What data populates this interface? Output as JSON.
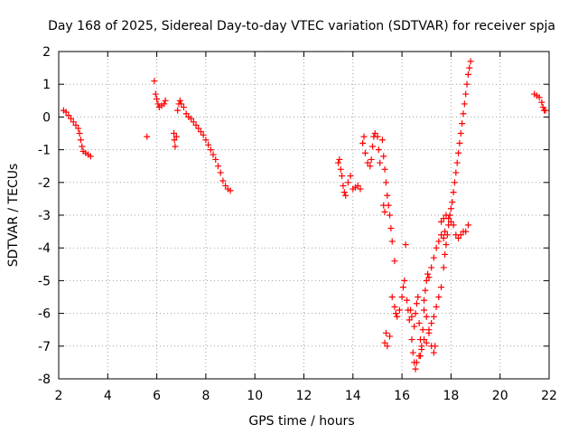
{
  "chart_data": {
    "type": "scatter",
    "title": "Day 168 of 2025, Sidereal Day-to-day VTEC variation (SDTVAR) for receiver spja",
    "xlabel": "GPS time / hours",
    "ylabel": "SDTVAR / TECUs",
    "xlim": [
      2,
      22
    ],
    "ylim": [
      -8,
      2
    ],
    "xticks": [
      2,
      4,
      6,
      8,
      10,
      12,
      14,
      16,
      18,
      20,
      22
    ],
    "yticks": [
      -8,
      -7,
      -6,
      -5,
      -4,
      -3,
      -2,
      -1,
      0,
      1,
      2
    ],
    "grid": true,
    "marker": "+",
    "color": "#ff0000",
    "series": [
      {
        "name": "SDTVAR",
        "points": [
          [
            2.2,
            0.2
          ],
          [
            2.3,
            0.15
          ],
          [
            2.4,
            0.05
          ],
          [
            2.5,
            -0.05
          ],
          [
            2.6,
            -0.15
          ],
          [
            2.7,
            -0.25
          ],
          [
            2.8,
            -0.35
          ],
          [
            2.85,
            -0.5
          ],
          [
            2.9,
            -0.7
          ],
          [
            2.95,
            -0.9
          ],
          [
            3.0,
            -1.05
          ],
          [
            3.1,
            -1.1
          ],
          [
            3.2,
            -1.15
          ],
          [
            3.3,
            -1.2
          ],
          [
            5.6,
            -0.6
          ],
          [
            5.9,
            1.1
          ],
          [
            5.95,
            0.7
          ],
          [
            6.0,
            0.55
          ],
          [
            6.05,
            0.4
          ],
          [
            6.1,
            0.3
          ],
          [
            6.2,
            0.35
          ],
          [
            6.3,
            0.4
          ],
          [
            6.35,
            0.5
          ],
          [
            6.7,
            -0.5
          ],
          [
            6.72,
            -0.7
          ],
          [
            6.75,
            -0.9
          ],
          [
            6.8,
            -0.6
          ],
          [
            6.85,
            0.2
          ],
          [
            6.9,
            0.4
          ],
          [
            6.95,
            0.5
          ],
          [
            7.0,
            0.4
          ],
          [
            7.1,
            0.3
          ],
          [
            7.2,
            0.1
          ],
          [
            7.3,
            0.0
          ],
          [
            7.4,
            -0.05
          ],
          [
            7.5,
            -0.15
          ],
          [
            7.6,
            -0.25
          ],
          [
            7.7,
            -0.35
          ],
          [
            7.8,
            -0.45
          ],
          [
            7.9,
            -0.55
          ],
          [
            8.0,
            -0.7
          ],
          [
            8.1,
            -0.85
          ],
          [
            8.2,
            -1.0
          ],
          [
            8.3,
            -1.15
          ],
          [
            8.4,
            -1.3
          ],
          [
            8.5,
            -1.5
          ],
          [
            8.6,
            -1.7
          ],
          [
            8.7,
            -1.95
          ],
          [
            8.8,
            -2.1
          ],
          [
            8.9,
            -2.2
          ],
          [
            9.0,
            -2.25
          ],
          [
            13.4,
            -1.4
          ],
          [
            13.45,
            -1.3
          ],
          [
            13.5,
            -1.6
          ],
          [
            13.55,
            -1.8
          ],
          [
            13.6,
            -2.1
          ],
          [
            13.65,
            -2.3
          ],
          [
            13.7,
            -2.4
          ],
          [
            13.8,
            -2.0
          ],
          [
            13.9,
            -1.8
          ],
          [
            14.0,
            -2.2
          ],
          [
            14.1,
            -2.15
          ],
          [
            14.2,
            -2.1
          ],
          [
            14.3,
            -2.2
          ],
          [
            14.4,
            -0.8
          ],
          [
            14.45,
            -0.6
          ],
          [
            14.5,
            -1.1
          ],
          [
            14.6,
            -1.4
          ],
          [
            14.7,
            -1.5
          ],
          [
            14.75,
            -1.3
          ],
          [
            14.8,
            -0.9
          ],
          [
            14.85,
            -0.6
          ],
          [
            14.9,
            -0.5
          ],
          [
            15.0,
            -0.6
          ],
          [
            15.05,
            -1.0
          ],
          [
            15.1,
            -1.4
          ],
          [
            15.2,
            -0.7
          ],
          [
            15.25,
            -1.2
          ],
          [
            15.3,
            -1.6
          ],
          [
            15.35,
            -2.0
          ],
          [
            15.4,
            -2.4
          ],
          [
            15.45,
            -2.7
          ],
          [
            15.5,
            -3.0
          ],
          [
            15.55,
            -3.4
          ],
          [
            15.6,
            -3.8
          ],
          [
            15.7,
            -4.4
          ],
          [
            15.25,
            -2.7
          ],
          [
            15.3,
            -2.9
          ],
          [
            15.35,
            -6.6
          ],
          [
            15.3,
            -6.9
          ],
          [
            15.4,
            -7.0
          ],
          [
            15.5,
            -6.7
          ],
          [
            15.6,
            -5.5
          ],
          [
            15.7,
            -5.8
          ],
          [
            15.75,
            -6.0
          ],
          [
            15.8,
            -6.1
          ],
          [
            15.9,
            -5.9
          ],
          [
            16.0,
            -5.5
          ],
          [
            16.05,
            -5.2
          ],
          [
            16.1,
            -5.0
          ],
          [
            16.15,
            -3.9
          ],
          [
            16.2,
            -5.6
          ],
          [
            16.25,
            -5.9
          ],
          [
            16.3,
            -6.2
          ],
          [
            16.35,
            -5.9
          ],
          [
            16.4,
            -6.1
          ],
          [
            16.5,
            -6.4
          ],
          [
            16.55,
            -6.0
          ],
          [
            16.6,
            -5.7
          ],
          [
            16.65,
            -5.5
          ],
          [
            16.7,
            -6.3
          ],
          [
            16.75,
            -6.8
          ],
          [
            16.8,
            -7.1
          ],
          [
            16.85,
            -6.5
          ],
          [
            16.9,
            -5.9
          ],
          [
            17.0,
            -6.1
          ],
          [
            17.1,
            -6.5
          ],
          [
            17.2,
            -7.0
          ],
          [
            17.3,
            -7.2
          ],
          [
            17.35,
            -7.0
          ],
          [
            16.4,
            -6.8
          ],
          [
            16.45,
            -7.2
          ],
          [
            16.5,
            -7.5
          ],
          [
            16.55,
            -7.7
          ],
          [
            16.6,
            -7.5
          ],
          [
            16.7,
            -7.3
          ],
          [
            16.75,
            -7.3
          ],
          [
            16.8,
            -7.0
          ],
          [
            16.9,
            -6.8
          ],
          [
            17.0,
            -6.9
          ],
          [
            17.1,
            -6.6
          ],
          [
            17.2,
            -6.3
          ],
          [
            17.3,
            -6.1
          ],
          [
            17.4,
            -5.8
          ],
          [
            17.5,
            -5.5
          ],
          [
            17.6,
            -5.2
          ],
          [
            16.9,
            -5.6
          ],
          [
            16.95,
            -5.3
          ],
          [
            17.0,
            -5.0
          ],
          [
            17.05,
            -4.8
          ],
          [
            17.1,
            -4.9
          ],
          [
            17.2,
            -4.6
          ],
          [
            17.3,
            -4.3
          ],
          [
            17.4,
            -4.0
          ],
          [
            17.5,
            -3.8
          ],
          [
            17.6,
            -3.6
          ],
          [
            17.7,
            -3.7
          ],
          [
            17.75,
            -3.5
          ],
          [
            17.7,
            -4.6
          ],
          [
            17.75,
            -4.2
          ],
          [
            17.8,
            -3.9
          ],
          [
            17.85,
            -3.6
          ],
          [
            17.9,
            -3.3
          ],
          [
            17.95,
            -3.0
          ],
          [
            18.0,
            -2.8
          ],
          [
            18.05,
            -2.6
          ],
          [
            18.1,
            -2.3
          ],
          [
            18.15,
            -2.0
          ],
          [
            18.2,
            -1.7
          ],
          [
            18.25,
            -1.4
          ],
          [
            18.3,
            -1.1
          ],
          [
            18.35,
            -0.8
          ],
          [
            18.4,
            -0.5
          ],
          [
            18.45,
            -0.2
          ],
          [
            18.5,
            0.1
          ],
          [
            18.55,
            0.4
          ],
          [
            18.6,
            0.7
          ],
          [
            18.65,
            1.0
          ],
          [
            18.7,
            1.3
          ],
          [
            18.75,
            1.5
          ],
          [
            18.8,
            1.7
          ],
          [
            17.6,
            -3.2
          ],
          [
            17.7,
            -3.1
          ],
          [
            17.8,
            -3.0
          ],
          [
            17.9,
            -3.1
          ],
          [
            18.0,
            -3.2
          ],
          [
            18.1,
            -3.3
          ],
          [
            18.2,
            -3.6
          ],
          [
            18.3,
            -3.7
          ],
          [
            18.4,
            -3.6
          ],
          [
            18.5,
            -3.5
          ],
          [
            18.6,
            -3.5
          ],
          [
            18.7,
            -3.3
          ],
          [
            21.4,
            0.7
          ],
          [
            21.5,
            0.65
          ],
          [
            21.6,
            0.6
          ],
          [
            21.7,
            0.45
          ],
          [
            21.75,
            0.3
          ],
          [
            21.8,
            0.2
          ],
          [
            21.85,
            0.2
          ]
        ]
      }
    ]
  }
}
